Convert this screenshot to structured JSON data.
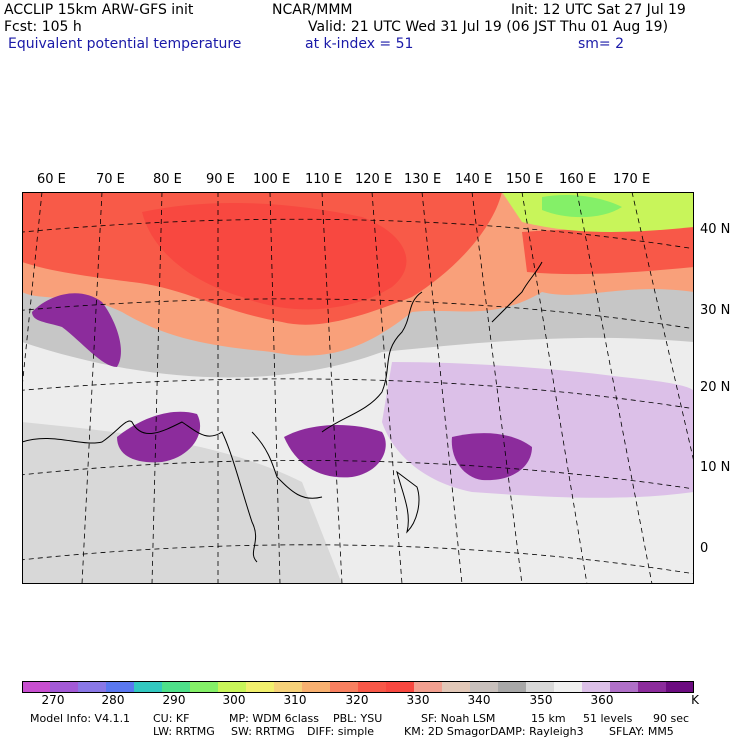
{
  "header": {
    "model_name": "ACCLIP 15km ARW-GFS init",
    "org": "NCAR/MMM",
    "init": "Init: 12 UTC Sat 27 Jul 19",
    "fcst": "Fcst:  105 h",
    "valid": "Valid: 21 UTC Wed 31 Jul 19 (06 JST Thu 01 Aug 19)",
    "field": "Equivalent potential temperature",
    "level": "at k-index =  51",
    "smooth": "sm= 2"
  },
  "map": {
    "lon_labels": [
      "60 E",
      "70 E",
      "80 E",
      "90 E",
      "100 E",
      "110 E",
      "120 E",
      "130 E",
      "140 E",
      "150 E",
      "160 E",
      "170 E"
    ],
    "lat_labels": [
      "40 N",
      "30 N",
      "20 N",
      "10 N",
      "0"
    ]
  },
  "colorbar": {
    "labels": [
      "270",
      "280",
      "290",
      "300",
      "310",
      "320",
      "330",
      "340",
      "350",
      "360"
    ],
    "unit": "K",
    "colors": [
      "#c84fd0",
      "#a35ad6",
      "#8a78e6",
      "#5a78f0",
      "#32c8c0",
      "#4ee08a",
      "#84f068",
      "#c8f55a",
      "#f2f06e",
      "#f6d27a",
      "#f8b070",
      "#f88060",
      "#f85848",
      "#f84840",
      "#f2a090",
      "#e2c8b8",
      "#c8c0bc",
      "#a8a8a8",
      "#d8d8d8",
      "#f0f0f0",
      "#dcc0e8",
      "#b070c8",
      "#8c2c9c",
      "#6c0c80"
    ]
  },
  "footer": {
    "line1": [
      "Model Info: V4.1.1",
      "CU: KF",
      "MP: WDM 6class",
      "PBL: YSU",
      "SF: Noah LSM",
      "15 km",
      "51 levels",
      "90 sec"
    ],
    "line2": [
      "LW: RRTMG",
      "SW: RRTMG",
      "DIFF: simple",
      "KM: 2D Smagor",
      "DAMP: Rayleigh3",
      "SFLAY: MM5"
    ]
  }
}
